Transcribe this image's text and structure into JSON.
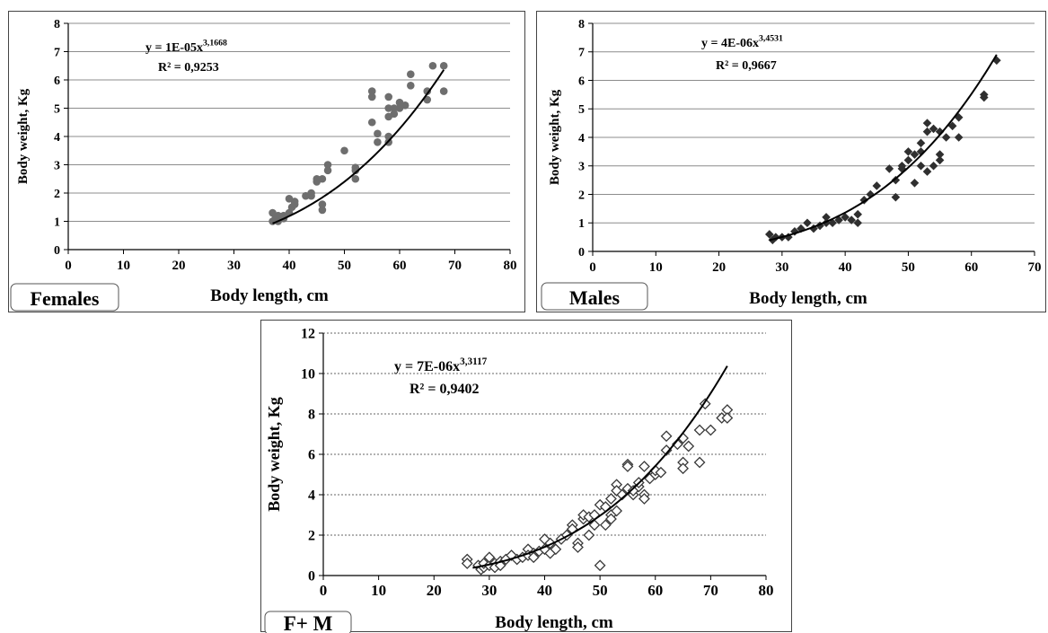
{
  "chart_data": [
    {
      "type": "scatter",
      "panel_label": "Females",
      "xlabel": "Body length, cm",
      "ylabel": "Body weight, Kg",
      "xlim": [
        0,
        80
      ],
      "ylim": [
        0,
        8
      ],
      "xticks": [
        "0",
        "10",
        "20",
        "30",
        "40",
        "50",
        "60",
        "70",
        "80"
      ],
      "yticks": [
        "0",
        "1",
        "2",
        "3",
        "4",
        "5",
        "6",
        "7",
        "8"
      ],
      "grid": "horizontal",
      "marker": "circle",
      "marker_color": "#6e6e6e",
      "equation": {
        "prefix": "y = 1E-05x",
        "exponent": "3,1668",
        "r2": "R² = 0,9253"
      },
      "trendline": {
        "a": 1e-05,
        "b": 3.1668,
        "x_range": [
          37,
          68
        ]
      },
      "points": [
        [
          37,
          1.3
        ],
        [
          37,
          1.0
        ],
        [
          37.5,
          1.1
        ],
        [
          38,
          1.2
        ],
        [
          38,
          1.0
        ],
        [
          39,
          1.1
        ],
        [
          39,
          1.2
        ],
        [
          40,
          1.3
        ],
        [
          40,
          1.8
        ],
        [
          40.5,
          1.5
        ],
        [
          41,
          1.6
        ],
        [
          41,
          1.7
        ],
        [
          43,
          1.9
        ],
        [
          44,
          2.0
        ],
        [
          44,
          1.9
        ],
        [
          45,
          2.5
        ],
        [
          45,
          2.4
        ],
        [
          46,
          2.5
        ],
        [
          46,
          1.6
        ],
        [
          46,
          1.4
        ],
        [
          47,
          3.0
        ],
        [
          47,
          2.8
        ],
        [
          50,
          3.5
        ],
        [
          52,
          2.9
        ],
        [
          52,
          2.5
        ],
        [
          52,
          2.8
        ],
        [
          55,
          5.6
        ],
        [
          55,
          5.4
        ],
        [
          55,
          4.5
        ],
        [
          56,
          3.8
        ],
        [
          56,
          4.1
        ],
        [
          58,
          5.0
        ],
        [
          58,
          5.4
        ],
        [
          58,
          4.7
        ],
        [
          58,
          4.0
        ],
        [
          58,
          3.8
        ],
        [
          59,
          4.8
        ],
        [
          59,
          5.0
        ],
        [
          60,
          5.2
        ],
        [
          60,
          5.0
        ],
        [
          61,
          5.1
        ],
        [
          62,
          6.2
        ],
        [
          62,
          5.8
        ],
        [
          65,
          5.3
        ],
        [
          65,
          5.6
        ],
        [
          66,
          6.5
        ],
        [
          68,
          6.5
        ],
        [
          68,
          5.6
        ]
      ]
    },
    {
      "type": "scatter",
      "panel_label": "Males",
      "xlabel": "Body length, cm",
      "ylabel": "Body weight, Kg",
      "xlim": [
        0,
        70
      ],
      "ylim": [
        0,
        8
      ],
      "xticks": [
        "0",
        "10",
        "20",
        "30",
        "40",
        "50",
        "60",
        "70"
      ],
      "yticks": [
        "0",
        "1",
        "2",
        "3",
        "4",
        "5",
        "6",
        "7",
        "8"
      ],
      "grid": "horizontal",
      "marker": "diamond",
      "marker_color": "#2f2f2f",
      "equation": {
        "prefix": "y = 4E-06x",
        "exponent": "3,4531",
        "r2": "R² = 0,9667"
      },
      "trendline": {
        "a": 4e-06,
        "b": 3.4531,
        "x_range": [
          28,
          64
        ]
      },
      "points": [
        [
          28,
          0.6
        ],
        [
          28.5,
          0.4
        ],
        [
          29,
          0.5
        ],
        [
          30,
          0.5
        ],
        [
          31,
          0.5
        ],
        [
          32,
          0.7
        ],
        [
          33,
          0.8
        ],
        [
          34,
          1.0
        ],
        [
          35,
          0.8
        ],
        [
          36,
          0.9
        ],
        [
          37,
          1.2
        ],
        [
          37,
          1.0
        ],
        [
          38,
          1.0
        ],
        [
          39,
          1.1
        ],
        [
          40,
          1.2
        ],
        [
          41,
          1.1
        ],
        [
          42,
          1.3
        ],
        [
          42,
          1.0
        ],
        [
          43,
          1.8
        ],
        [
          44,
          2.0
        ],
        [
          45,
          2.3
        ],
        [
          47,
          2.9
        ],
        [
          48,
          1.9
        ],
        [
          48,
          2.5
        ],
        [
          49,
          3.0
        ],
        [
          49,
          2.9
        ],
        [
          50,
          3.5
        ],
        [
          50,
          3.2
        ],
        [
          51,
          3.4
        ],
        [
          51,
          2.4
        ],
        [
          52,
          3.8
        ],
        [
          52,
          3.5
        ],
        [
          52,
          3.0
        ],
        [
          53,
          4.5
        ],
        [
          53,
          4.2
        ],
        [
          53,
          2.8
        ],
        [
          54,
          4.3
        ],
        [
          54,
          3.0
        ],
        [
          55,
          4.2
        ],
        [
          55,
          3.4
        ],
        [
          55,
          3.2
        ],
        [
          56,
          4.0
        ],
        [
          57,
          4.4
        ],
        [
          58,
          4.7
        ],
        [
          58,
          4.0
        ],
        [
          62,
          5.5
        ],
        [
          62,
          5.4
        ],
        [
          64,
          6.7
        ]
      ]
    },
    {
      "type": "scatter",
      "panel_label": "F+ M",
      "xlabel": "Body length, cm",
      "ylabel": "Body weight, Kg",
      "xlim": [
        0,
        80
      ],
      "ylim": [
        0,
        12
      ],
      "xticks": [
        "0",
        "10",
        "20",
        "30",
        "40",
        "50",
        "60",
        "70",
        "80"
      ],
      "yticks": [
        "0",
        "2",
        "4",
        "6",
        "8",
        "10",
        "12"
      ],
      "grid": "horizontal-dashed",
      "marker": "diamond-open",
      "marker_color": "#3a3a3a",
      "equation": {
        "prefix": "y = 7E-06x",
        "exponent": "3,3117",
        "r2": "R² = 0,9402"
      },
      "trendline": {
        "a": 7e-06,
        "b": 3.3117,
        "x_range": [
          27,
          73
        ]
      },
      "points": [
        [
          26,
          0.8
        ],
        [
          26,
          0.6
        ],
        [
          28,
          0.5
        ],
        [
          28.5,
          0.3
        ],
        [
          29,
          0.4
        ],
        [
          29,
          0.6
        ],
        [
          30,
          0.5
        ],
        [
          30,
          0.9
        ],
        [
          31,
          0.6
        ],
        [
          31,
          0.4
        ],
        [
          32,
          0.7
        ],
        [
          32,
          0.5
        ],
        [
          33,
          0.8
        ],
        [
          34,
          1.0
        ],
        [
          35,
          0.8
        ],
        [
          36,
          0.9
        ],
        [
          37,
          1.3
        ],
        [
          37,
          1.0
        ],
        [
          38,
          1.1
        ],
        [
          38,
          0.9
        ],
        [
          39,
          1.2
        ],
        [
          40,
          1.8
        ],
        [
          40,
          1.3
        ],
        [
          41,
          1.6
        ],
        [
          41,
          1.1
        ],
        [
          42,
          1.3
        ],
        [
          43,
          1.8
        ],
        [
          44,
          2.0
        ],
        [
          45,
          2.5
        ],
        [
          45,
          2.3
        ],
        [
          46,
          1.6
        ],
        [
          46,
          1.4
        ],
        [
          47,
          2.8
        ],
        [
          47,
          3.0
        ],
        [
          48,
          2.9
        ],
        [
          48,
          2.0
        ],
        [
          49,
          2.5
        ],
        [
          49,
          3.0
        ],
        [
          50,
          3.5
        ],
        [
          50,
          0.5
        ],
        [
          51,
          3.4
        ],
        [
          51,
          2.5
        ],
        [
          52,
          3.8
        ],
        [
          52,
          3.0
        ],
        [
          52,
          2.8
        ],
        [
          53,
          4.5
        ],
        [
          53,
          4.2
        ],
        [
          53,
          3.2
        ],
        [
          54,
          4.0
        ],
        [
          55,
          5.5
        ],
        [
          55,
          5.4
        ],
        [
          55,
          4.3
        ],
        [
          56,
          4.0
        ],
        [
          56,
          4.2
        ],
        [
          57,
          4.4
        ],
        [
          57,
          4.6
        ],
        [
          58,
          5.4
        ],
        [
          58,
          4.0
        ],
        [
          58,
          3.8
        ],
        [
          59,
          4.8
        ],
        [
          60,
          5.0
        ],
        [
          60,
          5.2
        ],
        [
          61,
          5.1
        ],
        [
          62,
          6.9
        ],
        [
          62,
          6.2
        ],
        [
          64,
          6.5
        ],
        [
          65,
          6.8
        ],
        [
          65,
          5.6
        ],
        [
          65,
          5.3
        ],
        [
          66,
          6.4
        ],
        [
          68,
          5.6
        ],
        [
          68,
          7.2
        ],
        [
          69,
          8.5
        ],
        [
          70,
          7.2
        ],
        [
          72,
          7.8
        ],
        [
          73,
          8.2
        ],
        [
          73,
          7.8
        ]
      ]
    }
  ]
}
